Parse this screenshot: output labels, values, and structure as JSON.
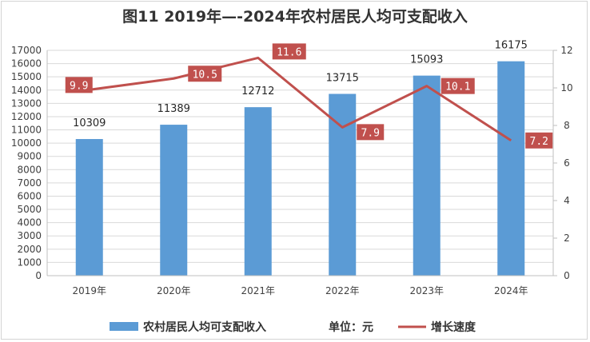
{
  "chart_data": {
    "type": "bar+line",
    "title": "图11  2019年—-2024年农村居民人均可支配收入",
    "categories": [
      "2019年",
      "2020年",
      "2021年",
      "2022年",
      "2023年",
      "2024年"
    ],
    "series": [
      {
        "name": "农村居民人均可支配收入",
        "type": "bar",
        "axis": "left",
        "color": "#5b9bd5",
        "values": [
          10309,
          11389,
          12712,
          13715,
          15093,
          16175
        ],
        "labels": [
          "10309",
          "11389",
          "12712",
          "13715",
          "15093",
          "16175"
        ]
      },
      {
        "name": "增长速度",
        "type": "line",
        "axis": "right",
        "color": "#c0504d",
        "label_bg": "#c0504d",
        "values": [
          9.9,
          10.5,
          11.6,
          7.9,
          10.1,
          7.2
        ],
        "labels": [
          "9.9",
          "10.5",
          "11.6",
          "7.9",
          "10.1",
          "7.2"
        ]
      }
    ],
    "left_axis": {
      "min": 0,
      "max": 17000,
      "step": 1000,
      "tick_labels": [
        "0",
        "1000",
        "2000",
        "3000",
        "4000",
        "5000",
        "6000",
        "7000",
        "8000",
        "9000",
        "10000",
        "11000",
        "12000",
        "13000",
        "14000",
        "15000",
        "16000",
        "17000"
      ]
    },
    "right_axis": {
      "min": 0,
      "max": 12,
      "step": 2,
      "tick_labels": [
        "0",
        "2",
        "4",
        "6",
        "8",
        "10",
        "12"
      ]
    },
    "grid": true,
    "legend_position": "bottom",
    "unit_note": "单位：元"
  }
}
